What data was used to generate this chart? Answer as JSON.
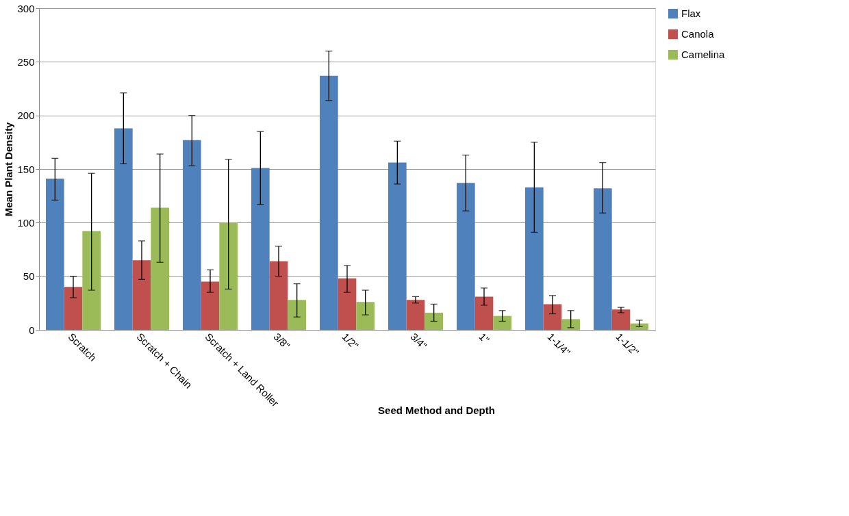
{
  "chart_data": {
    "type": "bar",
    "xlabel": "Seed Method and Depth",
    "ylabel": "Mean Plant Density",
    "categories": [
      "Scratch",
      "Scratch + Chain",
      "Scratch + Land Roller",
      "3/8\"",
      "1/2\"",
      "3/4\"",
      "1\"",
      "1-1/4\"",
      "1-1/2\""
    ],
    "series": [
      {
        "name": "Flax",
        "color": "#4f81bd",
        "values": [
          141,
          188,
          177,
          151,
          237,
          156,
          137,
          133,
          132
        ],
        "errors": [
          [
            121,
            160
          ],
          [
            155,
            221
          ],
          [
            153,
            200
          ],
          [
            117,
            185
          ],
          [
            214,
            260
          ],
          [
            136,
            176
          ],
          [
            111,
            163
          ],
          [
            91,
            175
          ],
          [
            109,
            156
          ]
        ]
      },
      {
        "name": "Canola",
        "color": "#c0504d",
        "values": [
          40,
          65,
          45,
          64,
          48,
          28,
          31,
          24,
          19
        ],
        "errors": [
          [
            30,
            50
          ],
          [
            47,
            83
          ],
          [
            35,
            56
          ],
          [
            50,
            78
          ],
          [
            35,
            60
          ],
          [
            25,
            31
          ],
          [
            23,
            39
          ],
          [
            15,
            32
          ],
          [
            16,
            21
          ]
        ]
      },
      {
        "name": "Camelina",
        "color": "#9bbb59",
        "values": [
          92,
          114,
          100,
          28,
          26,
          16,
          13,
          10,
          6
        ],
        "errors": [
          [
            37,
            146
          ],
          [
            63,
            164
          ],
          [
            38,
            159
          ],
          [
            12,
            43
          ],
          [
            14,
            37
          ],
          [
            8,
            24
          ],
          [
            8,
            18
          ],
          [
            2,
            18
          ],
          [
            3,
            9
          ]
        ]
      }
    ],
    "ylim": [
      0,
      300
    ],
    "yticks": [
      0,
      50,
      100,
      150,
      200,
      250,
      300
    ],
    "grid": "y",
    "legend": "right"
  }
}
